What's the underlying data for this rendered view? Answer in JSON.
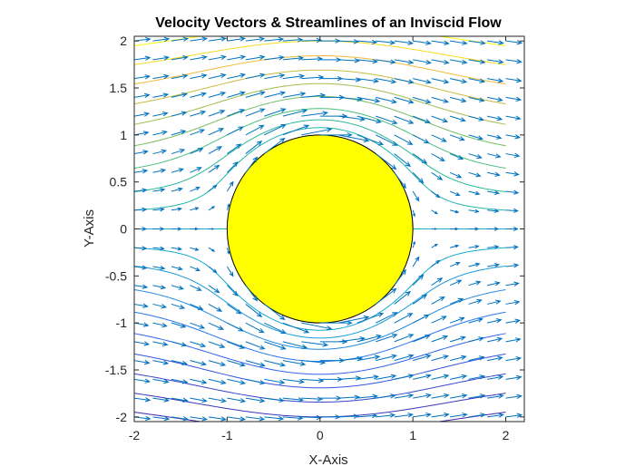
{
  "chart_data": {
    "type": "quiver+streamline",
    "title": "Velocity Vectors & Streamlines of an Inviscid Flow",
    "xlabel": "X-Axis",
    "ylabel": "Y-Axis",
    "xlim": [
      -2,
      2.2
    ],
    "ylim": [
      -2.05,
      2.05
    ],
    "x_ticks": [
      -2,
      -1,
      0,
      1,
      2
    ],
    "x_tick_labels": [
      "-2",
      "-1",
      "0",
      "1",
      "2"
    ],
    "y_ticks": [
      -2,
      -1.5,
      -1,
      -0.5,
      0,
      0.5,
      1,
      1.5,
      2
    ],
    "y_tick_labels": [
      "-2",
      "-1.5",
      "-1",
      "-0.5",
      "0",
      "0.5",
      "1",
      "1.5",
      "2"
    ],
    "grid": false,
    "box": true,
    "cylinder": {
      "center": [
        0,
        0
      ],
      "radius": 1,
      "fill": "#ffff00",
      "edge": "#000000"
    },
    "freestream_velocity": 1,
    "quiver": {
      "x_start": -2,
      "x_end": 2.2,
      "step": 0.2,
      "y_start": -2,
      "y_end": 2,
      "color": "#0072bd"
    },
    "streamlines": {
      "stream_function_values": [
        -1.7,
        -1.5,
        -1.3,
        -1.1,
        -0.9,
        -0.7,
        -0.5,
        -0.3,
        -0.15,
        0,
        0.15,
        0.3,
        0.5,
        0.7,
        0.9,
        1.1,
        1.3,
        1.5,
        1.7
      ],
      "x_range": [
        -2,
        2
      ],
      "colormap": "parula"
    }
  }
}
